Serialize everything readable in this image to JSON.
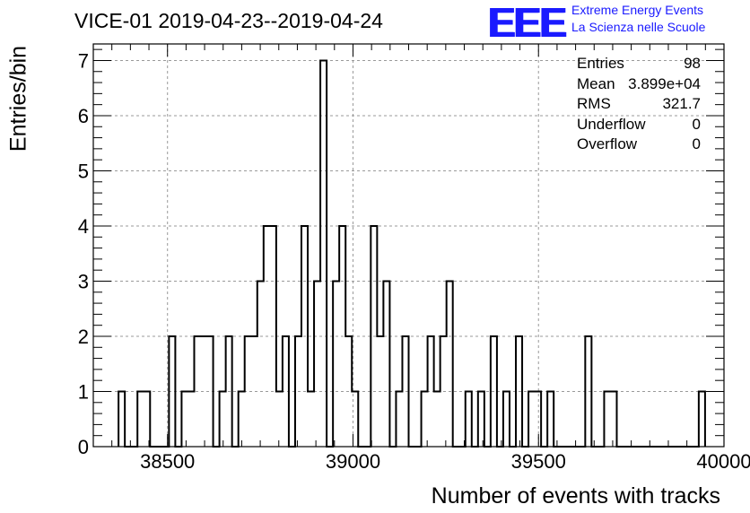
{
  "header": {
    "title": "VICE-01 2019-04-23--2019-04-24",
    "logo_mark": "EEE",
    "logo_line1": "Extreme Energy Events",
    "logo_line2": "La Scienza nelle Scuole",
    "logo_color": "#1a1aff"
  },
  "stats": {
    "rows": [
      {
        "key": "Entries",
        "value": "98"
      },
      {
        "key": "Mean",
        "value": "3.899e+04"
      },
      {
        "key": "RMS",
        "value": "321.7"
      },
      {
        "key": "Underflow",
        "value": "0"
      },
      {
        "key": "Overflow",
        "value": "0"
      }
    ]
  },
  "chart_data": {
    "type": "bar",
    "histogram": "step",
    "xlabel": "Number of events with tracks",
    "ylabel": "Entries/bin",
    "xlim": [
      38300,
      40000
    ],
    "ylim": [
      0,
      7.3
    ],
    "bin_width": 17,
    "x_ticks": [
      38500,
      39000,
      39500,
      40000
    ],
    "y_ticks": [
      0,
      1,
      2,
      3,
      4,
      5,
      6,
      7
    ],
    "grid": true,
    "bins": [
      {
        "x": 38368,
        "y": 1
      },
      {
        "x": 38419,
        "y": 1
      },
      {
        "x": 38436,
        "y": 1
      },
      {
        "x": 38504,
        "y": 2
      },
      {
        "x": 38538,
        "y": 1
      },
      {
        "x": 38555,
        "y": 1
      },
      {
        "x": 38572,
        "y": 2
      },
      {
        "x": 38589,
        "y": 2
      },
      {
        "x": 38606,
        "y": 2
      },
      {
        "x": 38640,
        "y": 1
      },
      {
        "x": 38657,
        "y": 2
      },
      {
        "x": 38691,
        "y": 1
      },
      {
        "x": 38708,
        "y": 2
      },
      {
        "x": 38725,
        "y": 2
      },
      {
        "x": 38742,
        "y": 3
      },
      {
        "x": 38759,
        "y": 4
      },
      {
        "x": 38776,
        "y": 4
      },
      {
        "x": 38793,
        "y": 1
      },
      {
        "x": 38810,
        "y": 2
      },
      {
        "x": 38844,
        "y": 2
      },
      {
        "x": 38861,
        "y": 4
      },
      {
        "x": 38878,
        "y": 1
      },
      {
        "x": 38895,
        "y": 3
      },
      {
        "x": 38912,
        "y": 7
      },
      {
        "x": 38946,
        "y": 3
      },
      {
        "x": 38963,
        "y": 4
      },
      {
        "x": 38980,
        "y": 2
      },
      {
        "x": 38997,
        "y": 1
      },
      {
        "x": 39048,
        "y": 4
      },
      {
        "x": 39065,
        "y": 2
      },
      {
        "x": 39082,
        "y": 3
      },
      {
        "x": 39116,
        "y": 1
      },
      {
        "x": 39133,
        "y": 2
      },
      {
        "x": 39184,
        "y": 1
      },
      {
        "x": 39201,
        "y": 2
      },
      {
        "x": 39218,
        "y": 1
      },
      {
        "x": 39235,
        "y": 2
      },
      {
        "x": 39252,
        "y": 3
      },
      {
        "x": 39303,
        "y": 1
      },
      {
        "x": 39337,
        "y": 1
      },
      {
        "x": 39371,
        "y": 2
      },
      {
        "x": 39405,
        "y": 1
      },
      {
        "x": 39439,
        "y": 2
      },
      {
        "x": 39473,
        "y": 1
      },
      {
        "x": 39490,
        "y": 1
      },
      {
        "x": 39524,
        "y": 1
      },
      {
        "x": 39626,
        "y": 2
      },
      {
        "x": 39677,
        "y": 1
      },
      {
        "x": 39694,
        "y": 1
      },
      {
        "x": 39932,
        "y": 1
      }
    ]
  }
}
